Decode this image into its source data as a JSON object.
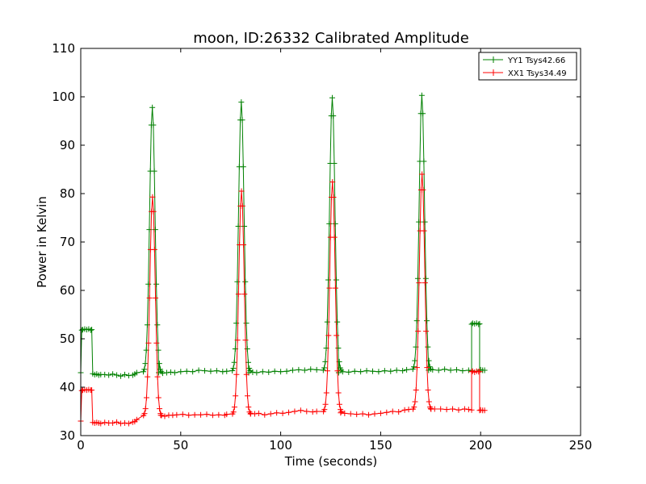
{
  "chart_data": {
    "type": "line",
    "title": "moon, ID:26332 Calibrated Amplitude",
    "xlabel": "Time (seconds)",
    "ylabel": "Power in Kelvin",
    "xlim": [
      0,
      250
    ],
    "ylim": [
      30,
      110
    ],
    "xticks": [
      "0",
      "50",
      "100",
      "150",
      "200",
      "250"
    ],
    "yticks": [
      "30",
      "40",
      "50",
      "60",
      "70",
      "80",
      "90",
      "100",
      "110"
    ],
    "grid": false,
    "legend_position": "top-right",
    "series": [
      {
        "name": "YY1 Tsys42.66",
        "color": "#008000",
        "marker": "+",
        "baseline_segments": [
          {
            "x": [
              0,
              0.5,
              1,
              2,
              3,
              4,
              5,
              5.5
            ],
            "y": [
              43,
              51.8,
              51.9,
              52,
              51.9,
              52,
              51.8,
              51.9
            ]
          },
          {
            "x": [
              6,
              7,
              8,
              9,
              10,
              12,
              14,
              16,
              18,
              20,
              22,
              24,
              26,
              27,
              28
            ],
            "y": [
              42.8,
              42.6,
              42.7,
              42.5,
              42.6,
              42.6,
              42.5,
              42.7,
              42.5,
              42.3,
              42.6,
              42.4,
              42.5,
              42.7,
              43.0
            ]
          },
          {
            "x": [
              39,
              41,
              43,
              45,
              47,
              50,
              53,
              56,
              59,
              62,
              65,
              68,
              71,
              73
            ],
            "y": [
              43.0,
              42.9,
              43.0,
              43.1,
              43.0,
              43.2,
              43.3,
              43.2,
              43.5,
              43.4,
              43.3,
              43.4,
              43.2,
              43.3
            ]
          },
          {
            "x": [
              84,
              86,
              88,
              91,
              94,
              97,
              100,
              103,
              106,
              109,
              112,
              115,
              118
            ],
            "y": [
              43.0,
              43.1,
              43.0,
              43.2,
              43.1,
              43.3,
              43.2,
              43.3,
              43.5,
              43.6,
              43.5,
              43.7,
              43.6
            ]
          },
          {
            "x": [
              129,
              131,
              134,
              137,
              140,
              143,
              146,
              149,
              152,
              155,
              158,
              161,
              163
            ],
            "y": [
              43.0,
              43.2,
              43.1,
              43.3,
              43.2,
              43.4,
              43.3,
              43.2,
              43.4,
              43.3,
              43.5,
              43.4,
              43.6
            ]
          },
          {
            "x": [
              174,
              176,
              179,
              182,
              185,
              188,
              191,
              194,
              195.5
            ],
            "y": [
              43.5,
              43.6,
              43.5,
              43.7,
              43.5,
              43.6,
              43.4,
              43.5,
              43.4
            ]
          },
          {
            "x": [
              195.5,
              196,
              197,
              198,
              199,
              199.5
            ],
            "y": [
              53.0,
              53.2,
              53.1,
              53.2,
              53.0,
              53.1
            ]
          },
          {
            "x": [
              199.5,
              200,
              201,
              202
            ],
            "y": [
              43.5,
              43.6,
              43.5,
              43.5
            ]
          }
        ],
        "peaks": [
          {
            "center": 35.8,
            "height": 97.8,
            "base": 43.0
          },
          {
            "center": 80.3,
            "height": 98.9,
            "base": 43.2
          },
          {
            "center": 125.8,
            "height": 99.8,
            "base": 43.3
          },
          {
            "center": 170.6,
            "height": 100.3,
            "base": 43.5
          }
        ]
      },
      {
        "name": "XX1 Tsys34.49",
        "color": "#ff0000",
        "marker": "+",
        "baseline_segments": [
          {
            "x": [
              0,
              0.5,
              1,
              2,
              3,
              4,
              5,
              5.5
            ],
            "y": [
              33,
              39.3,
              39.4,
              39.5,
              39.4,
              39.5,
              39.4,
              39.4
            ]
          },
          {
            "x": [
              6,
              7,
              8,
              9,
              10,
              12,
              14,
              16,
              18,
              20,
              22,
              24,
              26,
              27,
              28
            ],
            "y": [
              32.7,
              32.6,
              32.7,
              32.6,
              32.5,
              32.7,
              32.6,
              32.6,
              32.8,
              32.5,
              32.6,
              32.5,
              32.8,
              32.9,
              33.3
            ]
          },
          {
            "x": [
              40,
              42,
              44,
              46,
              48,
              51,
              54,
              57,
              60,
              63,
              66,
              69,
              72,
              73
            ],
            "y": [
              34.2,
              34.0,
              34.2,
              34.2,
              34.3,
              34.4,
              34.2,
              34.3,
              34.3,
              34.4,
              34.2,
              34.3,
              34.2,
              34.4
            ]
          },
          {
            "x": [
              85,
              87,
              89,
              92,
              95,
              98,
              101,
              104,
              107,
              110,
              113,
              116,
              118
            ],
            "y": [
              34.6,
              34.5,
              34.6,
              34.3,
              34.5,
              34.7,
              34.6,
              34.8,
              35.0,
              35.2,
              35.0,
              34.9,
              35.0
            ]
          },
          {
            "x": [
              130,
              132,
              135,
              138,
              141,
              144,
              147,
              150,
              153,
              156,
              159,
              162,
              164
            ],
            "y": [
              34.7,
              34.6,
              34.5,
              34.4,
              34.5,
              34.3,
              34.5,
              34.6,
              34.8,
              35.0,
              34.9,
              35.3,
              35.4
            ]
          },
          {
            "x": [
              175,
              177,
              180,
              183,
              186,
              189,
              192,
              194,
              195.5
            ],
            "y": [
              35.6,
              35.5,
              35.5,
              35.4,
              35.5,
              35.3,
              35.5,
              35.4,
              35.3
            ]
          },
          {
            "x": [
              195.5,
              196,
              197,
              198,
              199,
              199.5
            ],
            "y": [
              43.2,
              43.3,
              43.1,
              43.3,
              43.2,
              43.2
            ]
          },
          {
            "x": [
              199.5,
              200,
              201,
              202
            ],
            "y": [
              35.2,
              35.3,
              35.2,
              35.2
            ]
          }
        ],
        "peaks": [
          {
            "center": 35.9,
            "height": 79.3,
            "base": 34.0
          },
          {
            "center": 80.4,
            "height": 80.5,
            "base": 34.3
          },
          {
            "center": 125.9,
            "height": 82.4,
            "base": 34.8
          },
          {
            "center": 170.7,
            "height": 84.0,
            "base": 35.3
          }
        ]
      }
    ]
  }
}
